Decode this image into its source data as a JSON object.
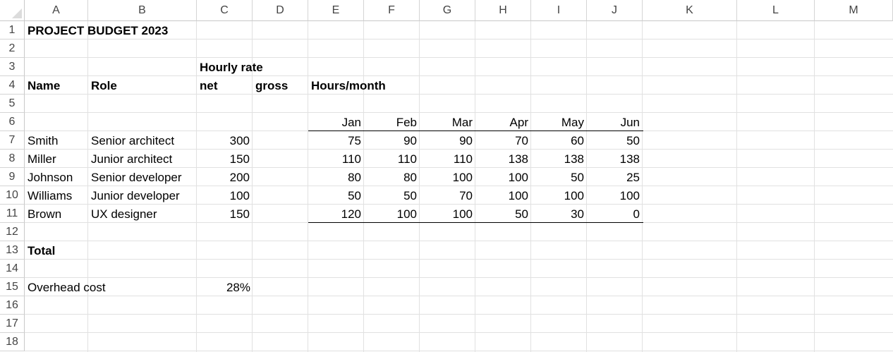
{
  "columns": [
    "A",
    "B",
    "C",
    "D",
    "E",
    "F",
    "G",
    "H",
    "I",
    "J",
    "K",
    "L",
    "M"
  ],
  "rows": [
    "1",
    "2",
    "3",
    "4",
    "5",
    "6",
    "7",
    "8",
    "9",
    "10",
    "11",
    "12",
    "13",
    "14",
    "15",
    "16",
    "17",
    "18"
  ],
  "title": "PROJECT BUDGET 2023",
  "headers": {
    "hourly_rate": "Hourly rate",
    "name": "Name",
    "role": "Role",
    "net": "net",
    "gross": "gross",
    "hours_month": "Hours/month"
  },
  "months": [
    "Jan",
    "Feb",
    "Mar",
    "Apr",
    "May",
    "Jun"
  ],
  "people": [
    {
      "name": "Smith",
      "role": "Senior architect",
      "rate": "300",
      "hours": [
        "75",
        "90",
        "90",
        "70",
        "60",
        "50"
      ]
    },
    {
      "name": "Miller",
      "role": "Junior architect",
      "rate": "150",
      "hours": [
        "110",
        "110",
        "110",
        "138",
        "138",
        "138"
      ]
    },
    {
      "name": "Johnson",
      "role": "Senior developer",
      "rate": "200",
      "hours": [
        "80",
        "80",
        "100",
        "100",
        "50",
        "25"
      ]
    },
    {
      "name": "Williams",
      "role": "Junior developer",
      "rate": "100",
      "hours": [
        "50",
        "50",
        "70",
        "100",
        "100",
        "100"
      ]
    },
    {
      "name": "Brown",
      "role": "UX designer",
      "rate": "150",
      "hours": [
        "120",
        "100",
        "100",
        "50",
        "30",
        "0"
      ]
    }
  ],
  "total_label": "Total",
  "overhead_label": "Overhead cost",
  "overhead_value": "28%"
}
